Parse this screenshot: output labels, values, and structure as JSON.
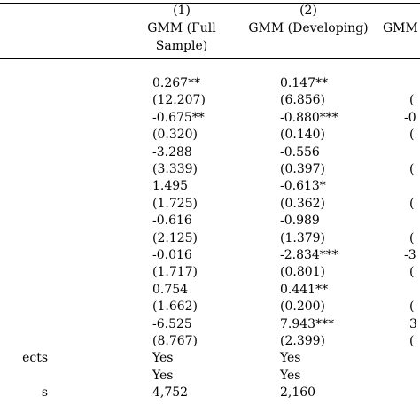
{
  "columns": [
    {
      "number": "(1)",
      "title_line1": "GMM (Full",
      "title_line2": "Sample)"
    },
    {
      "number": "(2)",
      "title_line1": "GMM (Developing)",
      "title_line2": ""
    },
    {
      "number": "",
      "title_line1": "GMM",
      "title_line2": ""
    }
  ],
  "rows": [
    {
      "label": "",
      "c1": "0.267**",
      "c2": "0.147**",
      "c3": ""
    },
    {
      "label": "",
      "c1": "(12.207)",
      "c2": "(6.856)",
      "c3": "("
    },
    {
      "label": "",
      "c1": "-0.675**",
      "c2": "-0.880***",
      "c3": "-0"
    },
    {
      "label": "",
      "c1": "(0.320)",
      "c2": "(0.140)",
      "c3": "("
    },
    {
      "label": "",
      "c1": "-3.288",
      "c2": "-0.556",
      "c3": ""
    },
    {
      "label": "",
      "c1": "(3.339)",
      "c2": "(0.397)",
      "c3": "("
    },
    {
      "label": "",
      "c1": "1.495",
      "c2": "-0.613*",
      "c3": ""
    },
    {
      "label": "",
      "c1": "(1.725)",
      "c2": "(0.362)",
      "c3": "("
    },
    {
      "label": "",
      "c1": "-0.616",
      "c2": "-0.989",
      "c3": ""
    },
    {
      "label": "",
      "c1": "(2.125)",
      "c2": "(1.379)",
      "c3": "("
    },
    {
      "label": "",
      "c1": "-0.016",
      "c2": "-2.834***",
      "c3": "-3"
    },
    {
      "label": "",
      "c1": "(1.717)",
      "c2": "(0.801)",
      "c3": "("
    },
    {
      "label": "",
      "c1": "0.754",
      "c2": "0.441**",
      "c3": ""
    },
    {
      "label": "",
      "c1": "(1.662)",
      "c2": "(0.200)",
      "c3": "("
    },
    {
      "label": "",
      "c1": "-6.525",
      "c2": "7.943***",
      "c3": "3"
    },
    {
      "label": "",
      "c1": "(8.767)",
      "c2": "(2.399)",
      "c3": "("
    },
    {
      "label": "ects",
      "c1": "Yes",
      "c2": "Yes",
      "c3": ""
    },
    {
      "label": "",
      "c1": "Yes",
      "c2": "Yes",
      "c3": ""
    },
    {
      "label": "s",
      "c1": "4,752",
      "c2": "2,160",
      "c3": ""
    }
  ]
}
